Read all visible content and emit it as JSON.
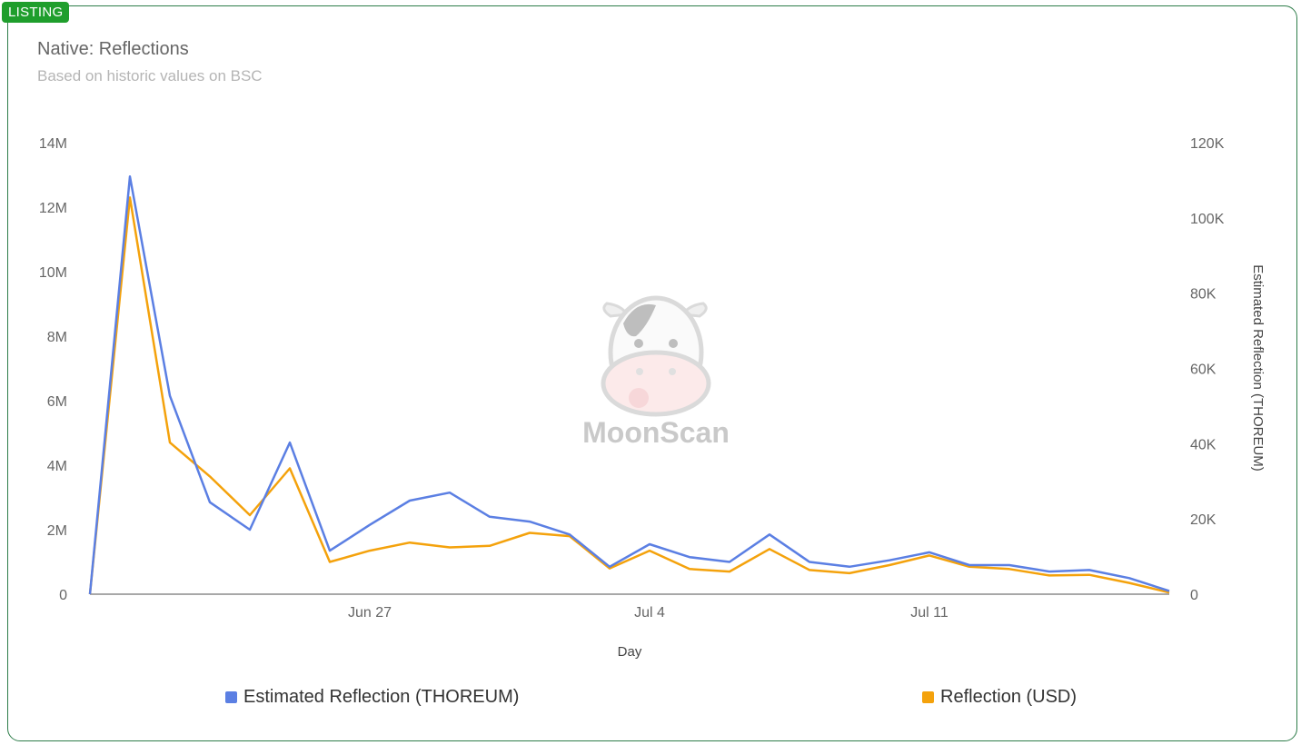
{
  "badge": "LISTING",
  "header": {
    "title": "Native: Reflections",
    "subtitle": "Based on historic values on BSC"
  },
  "watermark": {
    "text": "MoonScan",
    "icon": "cow-logo-icon"
  },
  "colors": {
    "thoreum": "#5b7fe3",
    "usd": "#f4a20c",
    "axis": "#888888",
    "text": "#666666"
  },
  "legend": [
    {
      "label": "Estimated Reflection (THOREUM)",
      "color": "#5b7fe3"
    },
    {
      "label": "Reflection (USD)",
      "color": "#f4a20c"
    }
  ],
  "chart_data": {
    "type": "line",
    "xlabel": "Day",
    "y2label": "Estimated Reflection (THOREUM)",
    "x_ticks": [
      {
        "label": "Jun 27",
        "index": 7
      },
      {
        "label": "Jul 4",
        "index": 14
      },
      {
        "label": "Jul 11",
        "index": 21
      }
    ],
    "left_axis": {
      "ylim": [
        0,
        14000000
      ],
      "ticks": [
        "0",
        "2M",
        "4M",
        "6M",
        "8M",
        "10M",
        "12M",
        "14M"
      ]
    },
    "right_axis": {
      "ylim": [
        0,
        120000
      ],
      "ticks": [
        "0",
        "20K",
        "40K",
        "60K",
        "80K",
        "100K",
        "120K"
      ]
    },
    "series": [
      {
        "name": "Estimated Reflection (THOREUM)",
        "axis": "left",
        "values": [
          0,
          12950000,
          6150000,
          2850000,
          2000000,
          4700000,
          1350000,
          2150000,
          2900000,
          3150000,
          2400000,
          2250000,
          1850000,
          850000,
          1550000,
          1150000,
          1000000,
          1850000,
          1000000,
          850000,
          1050000,
          1300000,
          900000,
          900000,
          700000,
          750000,
          500000,
          100000
        ]
      },
      {
        "name": "Reflection (USD)",
        "axis": "left",
        "values": [
          0,
          12300000,
          4700000,
          3650000,
          2450000,
          3900000,
          1000000,
          1350000,
          1600000,
          1450000,
          1500000,
          1900000,
          1800000,
          800000,
          1350000,
          780000,
          700000,
          1400000,
          750000,
          650000,
          900000,
          1200000,
          850000,
          780000,
          580000,
          600000,
          350000,
          50000
        ]
      }
    ]
  }
}
